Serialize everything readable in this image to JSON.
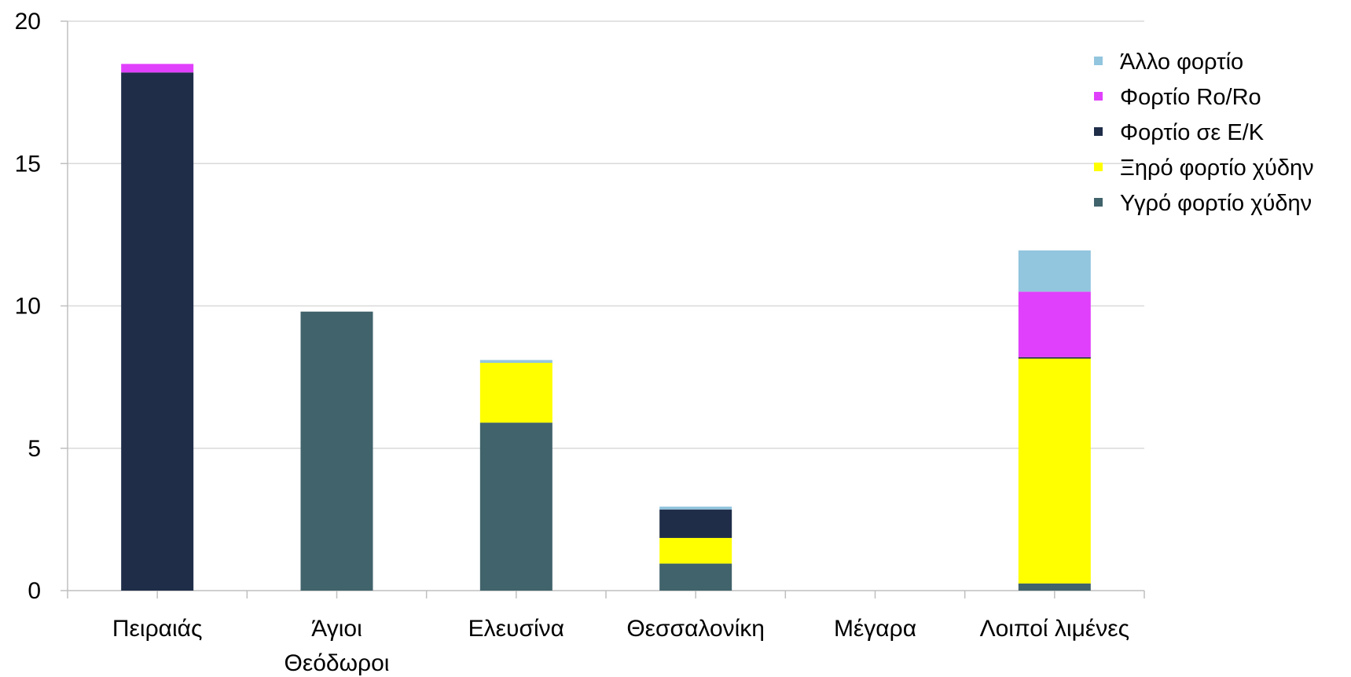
{
  "chart_data": {
    "type": "bar",
    "stacked": true,
    "title": "",
    "xlabel": "",
    "ylabel": "",
    "ylim": [
      0,
      20
    ],
    "yticks": [
      0,
      5,
      10,
      15,
      20
    ],
    "grid": true,
    "legend_position": "top-right",
    "categories": [
      [
        "Πειραιάς"
      ],
      [
        "Άγιοι",
        "Θεόδωροι"
      ],
      [
        "Ελευσίνα"
      ],
      [
        "Θεσσαλονίκη"
      ],
      [
        "Μέγαρα"
      ],
      [
        "Λοιποί λιμένες"
      ]
    ],
    "series": [
      {
        "name": "Υγρό φορτίο χύδην",
        "color": "#41636b",
        "values": [
          0,
          9.8,
          5.9,
          0.95,
          0,
          0.25
        ]
      },
      {
        "name": "Ξηρό φορτίο χύδην",
        "color": "#ffff00",
        "values": [
          0,
          0,
          2.1,
          0.9,
          0,
          7.9
        ]
      },
      {
        "name": "Φορτίο σε Ε/Κ",
        "color": "#1f2d49",
        "values": [
          18.2,
          0,
          0,
          1.0,
          0,
          0.05
        ]
      },
      {
        "name": "Φορτίο Ro/Ro",
        "color": "#e040fb",
        "values": [
          0.3,
          0,
          0,
          0,
          0,
          2.3
        ]
      },
      {
        "name": "Άλλο φορτίο",
        "color": "#92c5de",
        "values": [
          0,
          0,
          0.1,
          0.1,
          0,
          1.45
        ]
      }
    ],
    "legend_order": [
      "Άλλο φορτίο",
      "Φορτίο Ro/Ro",
      "Φορτίο σε Ε/Κ",
      "Ξηρό φορτίο χύδην",
      "Υγρό φορτίο χύδην"
    ]
  }
}
